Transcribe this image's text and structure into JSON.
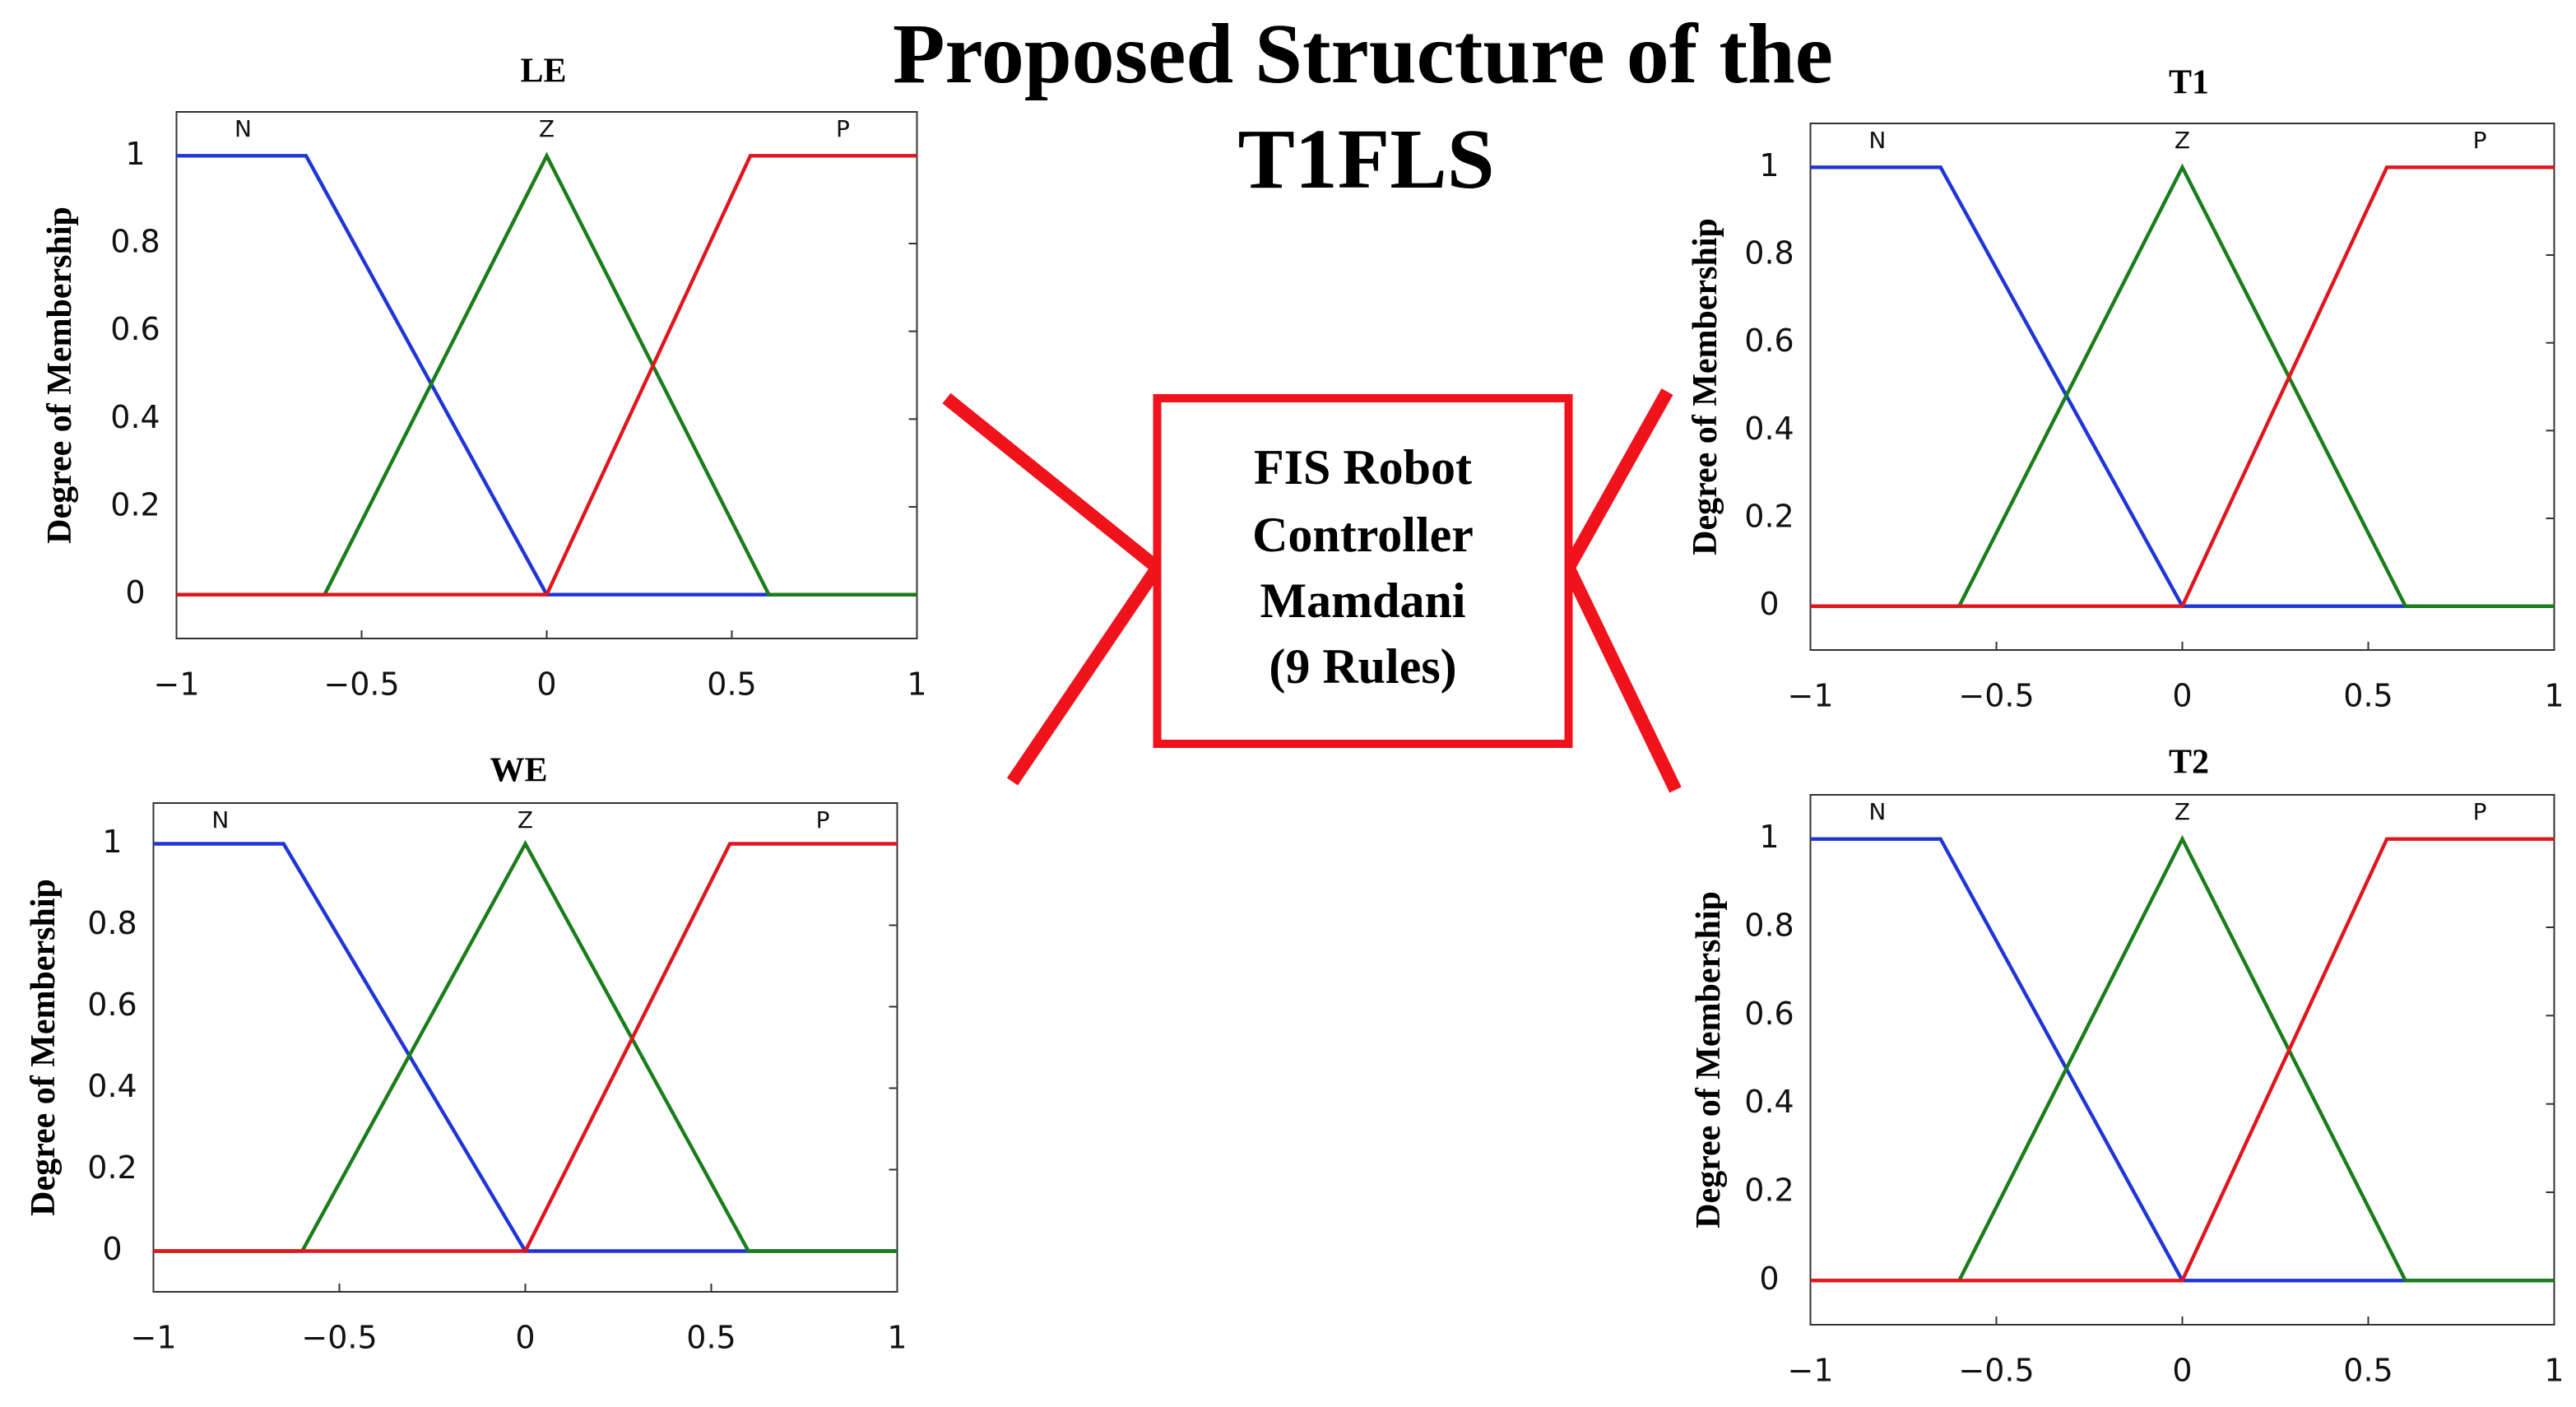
{
  "title_lines": [
    "Proposed Structure of the",
    "T1FLS"
  ],
  "box_lines": [
    "FIS Robot",
    "Controller",
    "Mamdani",
    "(9 Rules)"
  ],
  "chart_data": [
    {
      "type": "line",
      "title": "LE",
      "y_label": "Degree of Membership",
      "xlim": [
        -1,
        1
      ],
      "ylim": [
        -0.1,
        1.1
      ],
      "xticks": [
        {
          "value": -1,
          "label": "−1"
        },
        {
          "value": -0.5,
          "label": "−0.5"
        },
        0,
        0.5,
        1
      ],
      "yticks": [
        0,
        0.2,
        0.4,
        0.6,
        0.8,
        1
      ],
      "series": [
        {
          "name": "N",
          "color": "#1f35d6",
          "x": [
            -1,
            -0.65,
            0,
            1
          ],
          "values": [
            1,
            1,
            0,
            0
          ]
        },
        {
          "name": "Z",
          "color": "#1a7d1a",
          "x": [
            -1,
            -0.6,
            0,
            0.6,
            1
          ],
          "values": [
            0,
            0,
            1,
            0,
            0
          ]
        },
        {
          "name": "P",
          "color": "#e0161e",
          "x": [
            -1,
            0,
            0.55,
            1
          ],
          "values": [
            0,
            0,
            1,
            1
          ]
        }
      ]
    },
    {
      "type": "line",
      "title": "WE",
      "y_label": "Degree of Membership",
      "xlim": [
        -1,
        1
      ],
      "ylim": [
        -0.1,
        1.1
      ],
      "xticks": [
        {
          "value": -1,
          "label": "−1"
        },
        {
          "value": -0.5,
          "label": "−0.5"
        },
        0,
        0.5,
        1
      ],
      "yticks": [
        0,
        0.2,
        0.4,
        0.6,
        0.8,
        1
      ],
      "series": [
        {
          "name": "N",
          "color": "#1f35d6",
          "x": [
            -1,
            -0.65,
            0,
            1
          ],
          "values": [
            1,
            1,
            0,
            0
          ]
        },
        {
          "name": "Z",
          "color": "#1a7d1a",
          "x": [
            -1,
            -0.6,
            0,
            0.6,
            1
          ],
          "values": [
            0,
            0,
            1,
            0,
            0
          ]
        },
        {
          "name": "P",
          "color": "#e0161e",
          "x": [
            -1,
            0,
            0.55,
            1
          ],
          "values": [
            0,
            0,
            1,
            1
          ]
        }
      ]
    },
    {
      "type": "line",
      "title": "T1",
      "y_label": "Degree of Membership",
      "xlim": [
        -1,
        1
      ],
      "ylim": [
        -0.1,
        1.1
      ],
      "xticks": [
        {
          "value": -1,
          "label": "−1"
        },
        {
          "value": -0.5,
          "label": "−0.5"
        },
        0,
        0.5,
        1
      ],
      "yticks": [
        0,
        0.2,
        0.4,
        0.6,
        0.8,
        1
      ],
      "series": [
        {
          "name": "N",
          "color": "#1f35d6",
          "x": [
            -1,
            -0.65,
            0,
            1
          ],
          "values": [
            1,
            1,
            0,
            0
          ]
        },
        {
          "name": "Z",
          "color": "#1a7d1a",
          "x": [
            -1,
            -0.6,
            0,
            0.6,
            1
          ],
          "values": [
            0,
            0,
            1,
            0,
            0
          ]
        },
        {
          "name": "P",
          "color": "#e0161e",
          "x": [
            -1,
            0,
            0.55,
            1
          ],
          "values": [
            0,
            0,
            1,
            1
          ]
        }
      ]
    },
    {
      "type": "line",
      "title": "T2",
      "y_label": "Degree of Membership",
      "xlim": [
        -1,
        1
      ],
      "ylim": [
        -0.1,
        1.1
      ],
      "xticks": [
        {
          "value": -1,
          "label": "−1"
        },
        {
          "value": -0.5,
          "label": "−0.5"
        },
        0,
        0.5,
        1
      ],
      "yticks": [
        0,
        0.2,
        0.4,
        0.6,
        0.8,
        1
      ],
      "series": [
        {
          "name": "N",
          "color": "#1f35d6",
          "x": [
            -1,
            -0.65,
            0,
            1
          ],
          "values": [
            1,
            1,
            0,
            0
          ]
        },
        {
          "name": "Z",
          "color": "#1a7d1a",
          "x": [
            -1,
            -0.6,
            0,
            0.6,
            1
          ],
          "values": [
            0,
            0,
            1,
            0,
            0
          ]
        },
        {
          "name": "P",
          "color": "#e0161e",
          "x": [
            -1,
            0,
            0.55,
            1
          ],
          "values": [
            0,
            0,
            1,
            1
          ]
        }
      ]
    }
  ]
}
